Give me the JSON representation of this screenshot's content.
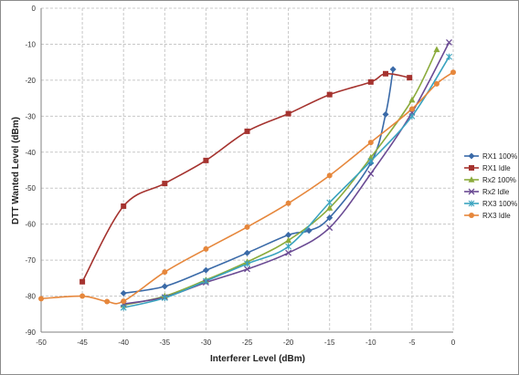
{
  "chart_data": {
    "type": "line",
    "xlabel": "Interferer Level  (dBm)",
    "ylabel": "DTT Wanted Level (dBm)",
    "xlim": [
      -50,
      0
    ],
    "ylim": [
      -90,
      0
    ],
    "xticks": [
      -50,
      -45,
      -40,
      -35,
      -30,
      -25,
      -20,
      -15,
      -10,
      -5,
      0
    ],
    "yticks": [
      0,
      -10,
      -20,
      -30,
      -40,
      -50,
      -60,
      -70,
      -80,
      -90
    ],
    "grid": "dashed",
    "legend": "right",
    "series": [
      {
        "name": "RX1 100%",
        "color": "#3a6aa8",
        "marker": "diamond",
        "points": [
          [
            -40,
            -79.2
          ],
          [
            -35,
            -77.3
          ],
          [
            -30,
            -72.8
          ],
          [
            -25,
            -68
          ],
          [
            -20,
            -63
          ],
          [
            -17.5,
            -61.8
          ],
          [
            -15,
            -58.2
          ],
          [
            -10,
            -43
          ],
          [
            -8.2,
            -29.5
          ],
          [
            -7.3,
            -17
          ]
        ]
      },
      {
        "name": "RX1 Idle",
        "color": "#a5332f",
        "marker": "square",
        "points": [
          [
            -45,
            -76
          ],
          [
            -40,
            -55
          ],
          [
            -35,
            -48.7
          ],
          [
            -30,
            -42.3
          ],
          [
            -25,
            -34.2
          ],
          [
            -20,
            -29.3
          ],
          [
            -15,
            -24
          ],
          [
            -10,
            -20.5
          ],
          [
            -8.2,
            -18.2
          ],
          [
            -5.3,
            -19.3
          ]
        ]
      },
      {
        "name": "Rx2 100%",
        "color": "#8bab3c",
        "marker": "triangle",
        "points": [
          [
            -40,
            -82.5
          ],
          [
            -35,
            -80
          ],
          [
            -30,
            -75.5
          ],
          [
            -25,
            -70.5
          ],
          [
            -20,
            -64.5
          ],
          [
            -15,
            -55.5
          ],
          [
            -10,
            -41.5
          ],
          [
            -5,
            -25.5
          ],
          [
            -2,
            -11.5
          ]
        ]
      },
      {
        "name": "Rx2 Idle",
        "color": "#6a4a93",
        "marker": "x",
        "points": [
          [
            -40,
            -82.2
          ],
          [
            -35,
            -80.3
          ],
          [
            -30,
            -76.2
          ],
          [
            -25,
            -72.5
          ],
          [
            -20,
            -68
          ],
          [
            -15,
            -61
          ],
          [
            -10,
            -46
          ],
          [
            -5,
            -29
          ],
          [
            -0.5,
            -9.5
          ]
        ]
      },
      {
        "name": "RX3 100%",
        "color": "#3aa3bf",
        "marker": "star",
        "points": [
          [
            -40,
            -83.2
          ],
          [
            -35,
            -80.5
          ],
          [
            -30,
            -75.8
          ],
          [
            -25,
            -71
          ],
          [
            -20,
            -66.2
          ],
          [
            -15,
            -54
          ],
          [
            -10,
            -42.5
          ],
          [
            -5,
            -30
          ],
          [
            -0.5,
            -13.5
          ]
        ]
      },
      {
        "name": "RX3 Idle",
        "color": "#e6873c",
        "marker": "circle",
        "points": [
          [
            -50,
            -80.7
          ],
          [
            -45,
            -80
          ],
          [
            -42,
            -81.5
          ],
          [
            -40,
            -81.4
          ],
          [
            -35,
            -73.3
          ],
          [
            -30,
            -66.9
          ],
          [
            -25,
            -60.8
          ],
          [
            -20,
            -54.2
          ],
          [
            -15,
            -46.5
          ],
          [
            -10,
            -37.3
          ],
          [
            -5,
            -28
          ],
          [
            -2,
            -21
          ],
          [
            0,
            -17.8
          ]
        ]
      }
    ]
  }
}
